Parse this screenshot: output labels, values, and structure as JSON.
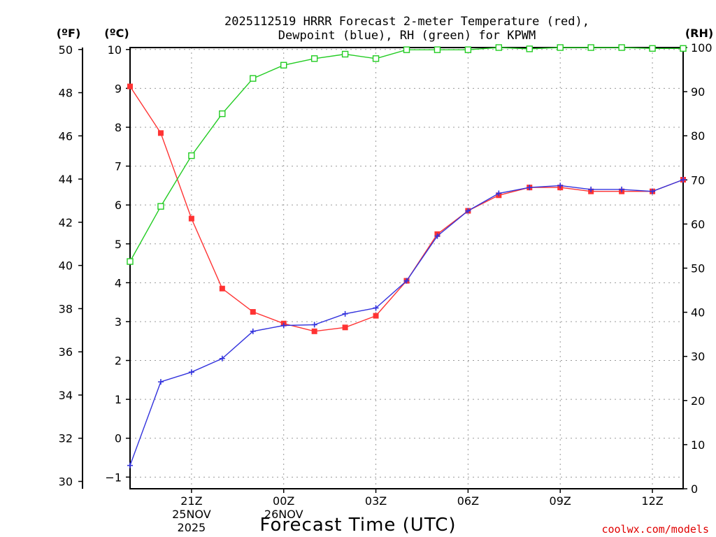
{
  "chart_data": {
    "type": "line",
    "title_lines": [
      "2025112519 HRRR Forecast 2-meter Temperature (red),",
      "Dewpoint (blue), RH (green) for KPWM"
    ],
    "axis_labels": {
      "fahrenheit": "(ºF)",
      "celsius": "(ºC)",
      "rh": "(RH)"
    },
    "xlabel": "Forecast Time (UTC)",
    "credit": "coolwx.com/models",
    "x_hours": [
      19,
      20,
      21,
      22,
      23,
      24,
      25,
      26,
      27,
      28,
      29,
      30,
      31,
      32,
      33,
      34,
      35,
      36,
      37
    ],
    "xlim": [
      19,
      37
    ],
    "x_ticks": [
      {
        "hour": 21,
        "lines": [
          "21Z",
          "25NOV",
          "2025"
        ]
      },
      {
        "hour": 24,
        "lines": [
          "00Z",
          "26NOV"
        ]
      },
      {
        "hour": 27,
        "lines": [
          "03Z"
        ]
      },
      {
        "hour": 30,
        "lines": [
          "06Z"
        ]
      },
      {
        "hour": 33,
        "lines": [
          "09Z"
        ]
      },
      {
        "hour": 36,
        "lines": [
          "12Z"
        ]
      }
    ],
    "celsius_axis": {
      "lim": [
        -1.3,
        10.05
      ],
      "ticks": [
        -1,
        0,
        1,
        2,
        3,
        4,
        5,
        6,
        7,
        8,
        9,
        10
      ]
    },
    "fahrenheit_axis": {
      "ticks": [
        30,
        32,
        34,
        36,
        38,
        40,
        42,
        44,
        46,
        48,
        50
      ]
    },
    "rh_axis": {
      "lim": [
        0,
        100
      ],
      "ticks": [
        0,
        10,
        20,
        30,
        40,
        50,
        60,
        70,
        80,
        90,
        100
      ]
    },
    "series": [
      {
        "name": "Temperature",
        "units": "C",
        "axis": "celsius",
        "color": "#ff3333",
        "marker": "filled-square",
        "values": [
          9.05,
          7.85,
          5.65,
          3.85,
          3.25,
          2.95,
          2.75,
          2.85,
          3.15,
          4.05,
          5.25,
          5.85,
          6.25,
          6.45,
          6.45,
          6.35,
          6.35,
          6.35,
          6.65
        ]
      },
      {
        "name": "Dewpoint",
        "units": "C",
        "axis": "celsius",
        "color": "#3333dd",
        "marker": "plus",
        "values": [
          -0.7,
          1.45,
          1.7,
          2.05,
          2.75,
          2.9,
          2.92,
          3.2,
          3.35,
          4.05,
          5.2,
          5.85,
          6.3,
          6.45,
          6.5,
          6.4,
          6.4,
          6.35,
          6.65
        ]
      },
      {
        "name": "RH",
        "units": "%",
        "axis": "rh",
        "color": "#22cc22",
        "marker": "open-square",
        "values": [
          51.5,
          64,
          75.5,
          85,
          93,
          96,
          97.5,
          98.5,
          97.5,
          99.5,
          99.5,
          99.5,
          100,
          99.7,
          100,
          100,
          100,
          99.8,
          99.8
        ]
      }
    ]
  }
}
